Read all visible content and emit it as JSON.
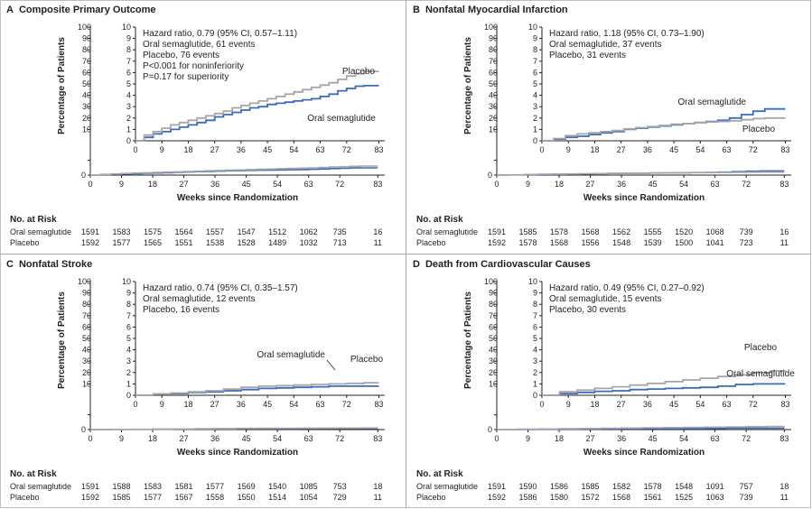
{
  "colors": {
    "oral_semaglutide": "#3a6bbf",
    "placebo": "#a6a6a6",
    "axis": "#231f20"
  },
  "chart_data": [
    {
      "type": "line",
      "panel_letter": "A",
      "title": "Composite Primary Outcome",
      "xlabel": "Weeks since Randomization",
      "ylabel": "Percentage of Patients",
      "xlim": [
        0,
        85
      ],
      "ylim": [
        0,
        100
      ],
      "inset_ylim": [
        0,
        10
      ],
      "x_ticks": [
        0,
        9,
        18,
        27,
        36,
        45,
        54,
        63,
        72,
        83
      ],
      "y_ticks": [
        0,
        10,
        20,
        30,
        40,
        50,
        60,
        70,
        80,
        90,
        100
      ],
      "inset_y_ticks": [
        0,
        1,
        2,
        3,
        4,
        5,
        6,
        7,
        8,
        9,
        10
      ],
      "annotations": [
        "Hazard ratio, 0.79 (95% CI, 0.57–1.11)",
        "Oral semaglutide, 61 events",
        "Placebo, 76 events",
        "P<0.001 for noninferiority",
        "P=0.17 for superiority"
      ],
      "series_labels": [
        "Placebo",
        "Oral semaglutide"
      ],
      "series": [
        {
          "name": "Oral semaglutide",
          "x": [
            0,
            3,
            6,
            9,
            12,
            15,
            18,
            21,
            24,
            27,
            30,
            33,
            36,
            39,
            42,
            45,
            48,
            51,
            54,
            57,
            60,
            63,
            66,
            69,
            72,
            75,
            78,
            83
          ],
          "y": [
            0,
            0.3,
            0.6,
            0.8,
            1.0,
            1.2,
            1.4,
            1.6,
            1.8,
            2.1,
            2.3,
            2.5,
            2.7,
            2.9,
            3.0,
            3.2,
            3.3,
            3.4,
            3.5,
            3.6,
            3.7,
            3.9,
            4.1,
            4.4,
            4.6,
            4.8,
            4.85,
            4.85
          ]
        },
        {
          "name": "Placebo",
          "x": [
            0,
            3,
            6,
            9,
            12,
            15,
            18,
            21,
            24,
            27,
            30,
            33,
            36,
            39,
            42,
            45,
            48,
            51,
            54,
            57,
            60,
            63,
            66,
            69,
            72,
            75,
            78,
            83
          ],
          "y": [
            0,
            0.5,
            0.8,
            1.1,
            1.4,
            1.6,
            1.8,
            2.0,
            2.2,
            2.4,
            2.6,
            2.9,
            3.1,
            3.3,
            3.5,
            3.7,
            3.9,
            4.1,
            4.3,
            4.5,
            4.7,
            4.9,
            5.1,
            5.4,
            5.7,
            5.9,
            6.1,
            6.1
          ]
        }
      ],
      "risk_table": {
        "heading": "No. at Risk",
        "rows": [
          {
            "label": "Oral semaglutide",
            "values": [
              "1591",
              "1583",
              "1575",
              "1564",
              "1557",
              "1547",
              "1512",
              "1062",
              "735",
              "16"
            ]
          },
          {
            "label": "Placebo",
            "values": [
              "1592",
              "1577",
              "1565",
              "1551",
              "1538",
              "1528",
              "1489",
              "1032",
              "713",
              "11"
            ]
          }
        ]
      }
    },
    {
      "type": "line",
      "panel_letter": "B",
      "title": "Nonfatal Myocardial Infarction",
      "xlabel": "Weeks since Randomization",
      "ylabel": "Percentage of Patients",
      "xlim": [
        0,
        85
      ],
      "ylim": [
        0,
        100
      ],
      "inset_ylim": [
        0,
        10
      ],
      "x_ticks": [
        0,
        9,
        18,
        27,
        36,
        45,
        54,
        63,
        72,
        83
      ],
      "y_ticks": [
        0,
        10,
        20,
        30,
        40,
        50,
        60,
        70,
        80,
        90,
        100
      ],
      "inset_y_ticks": [
        0,
        1,
        2,
        3,
        4,
        5,
        6,
        7,
        8,
        9,
        10
      ],
      "annotations": [
        "Hazard ratio, 1.18 (95% CI, 0.73–1.90)",
        "Oral semaglutide, 37 events",
        "Placebo, 31 events"
      ],
      "series_labels": [
        "Oral semaglutide",
        "Placebo"
      ],
      "series": [
        {
          "name": "Oral semaglutide",
          "x": [
            0,
            4,
            8,
            12,
            16,
            20,
            24,
            28,
            32,
            36,
            40,
            44,
            48,
            52,
            56,
            60,
            64,
            68,
            72,
            76,
            83
          ],
          "y": [
            0,
            0.15,
            0.3,
            0.4,
            0.55,
            0.7,
            0.8,
            1.0,
            1.1,
            1.2,
            1.3,
            1.4,
            1.5,
            1.6,
            1.7,
            1.8,
            2.0,
            2.3,
            2.6,
            2.8,
            2.8
          ]
        },
        {
          "name": "Placebo",
          "x": [
            0,
            4,
            8,
            12,
            16,
            20,
            24,
            28,
            32,
            36,
            40,
            44,
            48,
            52,
            56,
            60,
            64,
            68,
            72,
            76,
            83
          ],
          "y": [
            0,
            0.2,
            0.45,
            0.6,
            0.7,
            0.8,
            0.9,
            1.05,
            1.15,
            1.25,
            1.35,
            1.45,
            1.5,
            1.6,
            1.65,
            1.7,
            1.75,
            1.85,
            1.95,
            2.0,
            2.0
          ]
        }
      ],
      "risk_table": {
        "heading": "No. at Risk",
        "rows": [
          {
            "label": "Oral semaglutide",
            "values": [
              "1591",
              "1585",
              "1578",
              "1568",
              "1562",
              "1555",
              "1520",
              "1068",
              "739",
              "16"
            ]
          },
          {
            "label": "Placebo",
            "values": [
              "1592",
              "1578",
              "1568",
              "1556",
              "1548",
              "1539",
              "1500",
              "1041",
              "723",
              "11"
            ]
          }
        ]
      }
    },
    {
      "type": "line",
      "panel_letter": "C",
      "title": "Nonfatal Stroke",
      "xlabel": "Weeks since Randomization",
      "ylabel": "Percentage of Patients",
      "xlim": [
        0,
        85
      ],
      "ylim": [
        0,
        100
      ],
      "inset_ylim": [
        0,
        10
      ],
      "x_ticks": [
        0,
        9,
        18,
        27,
        36,
        45,
        54,
        63,
        72,
        83
      ],
      "y_ticks": [
        0,
        10,
        20,
        30,
        40,
        50,
        60,
        70,
        80,
        90,
        100
      ],
      "inset_y_ticks": [
        0,
        1,
        2,
        3,
        4,
        5,
        6,
        7,
        8,
        9,
        10
      ],
      "annotations": [
        "Hazard ratio, 0.74 (95% CI, 0.35–1.57)",
        "Oral semaglutide, 12 events",
        "Placebo, 16 events"
      ],
      "series_labels": [
        "Oral semaglutide",
        "Placebo"
      ],
      "series": [
        {
          "name": "Oral semaglutide",
          "x": [
            0,
            6,
            12,
            18,
            24,
            30,
            36,
            42,
            48,
            54,
            60,
            66,
            72,
            78,
            83
          ],
          "y": [
            0,
            0.1,
            0.15,
            0.25,
            0.3,
            0.4,
            0.5,
            0.6,
            0.65,
            0.7,
            0.75,
            0.8,
            0.8,
            0.8,
            0.8
          ]
        },
        {
          "name": "Placebo",
          "x": [
            0,
            6,
            12,
            18,
            24,
            30,
            36,
            42,
            48,
            54,
            60,
            66,
            72,
            78,
            83
          ],
          "y": [
            0,
            0.1,
            0.2,
            0.3,
            0.4,
            0.55,
            0.7,
            0.8,
            0.85,
            0.9,
            0.95,
            1.0,
            1.05,
            1.1,
            1.1
          ]
        }
      ],
      "risk_table": {
        "heading": "No. at Risk",
        "rows": [
          {
            "label": "Oral semaglutide",
            "values": [
              "1591",
              "1588",
              "1583",
              "1581",
              "1577",
              "1569",
              "1540",
              "1085",
              "753",
              "18"
            ]
          },
          {
            "label": "Placebo",
            "values": [
              "1592",
              "1585",
              "1577",
              "1567",
              "1558",
              "1550",
              "1514",
              "1054",
              "729",
              "11"
            ]
          }
        ]
      }
    },
    {
      "type": "line",
      "panel_letter": "D",
      "title": "Death from Cardiovascular Causes",
      "xlabel": "Weeks since Randomization",
      "ylabel": "Percentage of Patients",
      "xlim": [
        0,
        85
      ],
      "ylim": [
        0,
        100
      ],
      "inset_ylim": [
        0,
        10
      ],
      "x_ticks": [
        0,
        9,
        18,
        27,
        36,
        45,
        54,
        63,
        72,
        83
      ],
      "y_ticks": [
        0,
        10,
        20,
        30,
        40,
        50,
        60,
        70,
        80,
        90,
        100
      ],
      "inset_y_ticks": [
        0,
        1,
        2,
        3,
        4,
        5,
        6,
        7,
        8,
        9,
        10
      ],
      "annotations": [
        "Hazard ratio, 0.49 (95% CI, 0.27–0.92)",
        "Oral semaglutide, 15 events",
        "Placebo, 30 events"
      ],
      "series_labels": [
        "Placebo",
        "Oral semaglutide"
      ],
      "series": [
        {
          "name": "Oral semaglutide",
          "x": [
            0,
            6,
            12,
            18,
            24,
            30,
            36,
            42,
            48,
            54,
            60,
            66,
            72,
            78,
            83
          ],
          "y": [
            0,
            0.15,
            0.25,
            0.35,
            0.4,
            0.5,
            0.55,
            0.6,
            0.65,
            0.7,
            0.8,
            0.95,
            1.0,
            1.0,
            1.0
          ]
        },
        {
          "name": "Placebo",
          "x": [
            0,
            6,
            12,
            18,
            24,
            30,
            36,
            42,
            48,
            54,
            60,
            66,
            72,
            78,
            83
          ],
          "y": [
            0,
            0.3,
            0.45,
            0.6,
            0.75,
            0.9,
            1.05,
            1.2,
            1.35,
            1.5,
            1.65,
            1.8,
            2.0,
            2.15,
            2.2
          ]
        }
      ],
      "risk_table": {
        "heading": "No. at Risk",
        "rows": [
          {
            "label": "Oral semaglutide",
            "values": [
              "1591",
              "1590",
              "1586",
              "1585",
              "1582",
              "1578",
              "1548",
              "1091",
              "757",
              "18"
            ]
          },
          {
            "label": "Placebo",
            "values": [
              "1592",
              "1586",
              "1580",
              "1572",
              "1568",
              "1561",
              "1525",
              "1063",
              "739",
              "11"
            ]
          }
        ]
      }
    }
  ]
}
